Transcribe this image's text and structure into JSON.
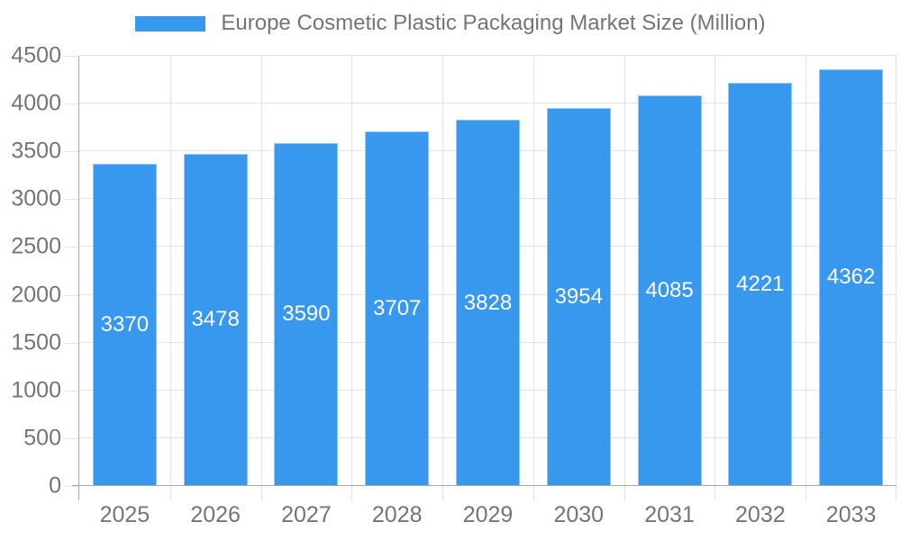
{
  "page": {
    "background": "#ffffff"
  },
  "legend": {
    "position": "top-center",
    "swatch_color": "#3898ee"
  },
  "chart_data": {
    "type": "bar",
    "title": "Europe Cosmetic Plastic Packaging Market Size (Million)",
    "series_name": "Europe Cosmetic Plastic Packaging Market Size (Million)",
    "categories": [
      "2025",
      "2026",
      "2027",
      "2028",
      "2029",
      "2030",
      "2031",
      "2032",
      "2033"
    ],
    "values": [
      3370,
      3478,
      3590,
      3707,
      3828,
      3954,
      4085,
      4221,
      4362
    ],
    "value_labels_shown": true,
    "xlabel": "",
    "ylabel": "",
    "ylim": [
      0,
      4500
    ],
    "yticks": [
      0,
      500,
      1000,
      1500,
      2000,
      2500,
      3000,
      3500,
      4000,
      4500
    ],
    "grid": true,
    "legend_position": "top",
    "colors": {
      "bar": "#3898ee",
      "value_label": "#ffffff",
      "axis_text": "#757575",
      "title_text": "#757575",
      "grid_line": "#e4e4e4",
      "axis_line": "#a8a8a8"
    }
  }
}
